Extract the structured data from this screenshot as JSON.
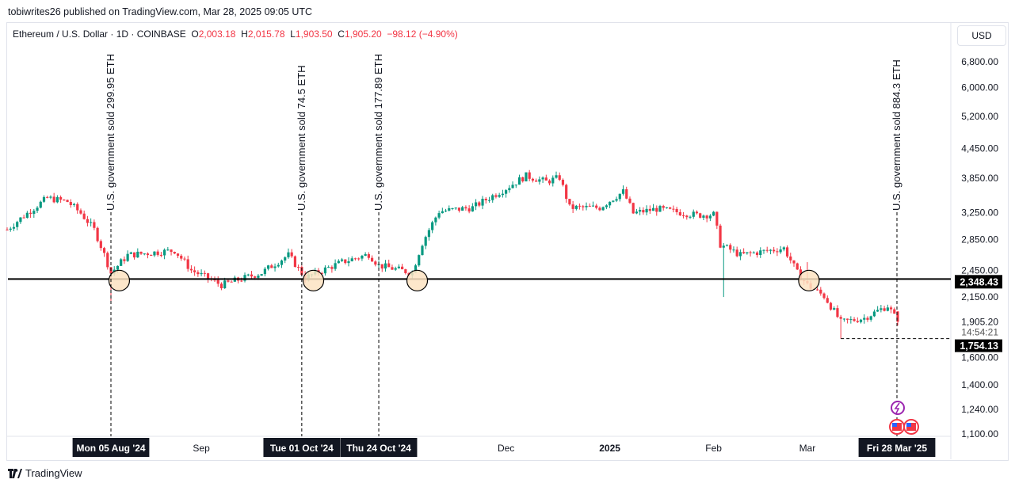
{
  "header": {
    "published": "tobiwrites26 published on TradingView.com, Mar 28, 2025 09:05 UTC"
  },
  "legend": {
    "symbol": "Ethereum / U.S. Dollar · 1D · COINBASE",
    "o_label": "O",
    "o": "2,003.18",
    "h_label": "H",
    "h": "2,015.78",
    "l_label": "L",
    "l": "1,903.50",
    "c_label": "C",
    "c": "1,905.20",
    "change": "−98.12 (−4.90%)"
  },
  "currency": "USD",
  "footer": {
    "brand": "TradingView"
  },
  "colors": {
    "up": "#089981",
    "down": "#f23645",
    "circle": "#fde3c2"
  },
  "chart_data": {
    "type": "candlestick",
    "title": "Ethereum / U.S. Dollar · 1D · COINBASE",
    "y_scale": "log",
    "ylim": [
      1100,
      6800
    ],
    "y_ticks": [
      "6,800.00",
      "6,000.00",
      "5,200.00",
      "4,450.00",
      "3,850.00",
      "3,250.00",
      "2,850.00",
      "2,450.00",
      "2,150.00",
      "1,905.20",
      "1,600.00",
      "1,400.00",
      "1,240.00",
      "1,100.00"
    ],
    "y_tick_values": [
      6800,
      6000,
      5200,
      4450,
      3850,
      3250,
      2850,
      2450,
      2150,
      1905.2,
      1600,
      1400,
      1240,
      1100
    ],
    "x_ticks": [
      {
        "label": "Sep",
        "day": 27
      },
      {
        "label": "Dec",
        "day": 118
      },
      {
        "label": "2025",
        "day": 149
      },
      {
        "label": "Feb",
        "day": 180
      },
      {
        "label": "Mar",
        "day": 208
      }
    ],
    "x_day_zero": "2024-08-05",
    "x_range_days": [
      -31,
      235
    ],
    "approx_close_path": [
      [
        -31,
        2990
      ],
      [
        -19,
        3490
      ],
      [
        -13,
        3430
      ],
      [
        -9,
        3240
      ],
      [
        -5,
        2990
      ],
      [
        0,
        2417
      ],
      [
        5,
        2640
      ],
      [
        19,
        2700
      ],
      [
        24,
        2450
      ],
      [
        33,
        2280
      ],
      [
        45,
        2420
      ],
      [
        53,
        2640
      ],
      [
        58,
        2360
      ],
      [
        69,
        2550
      ],
      [
        77,
        2650
      ],
      [
        80,
        2510
      ],
      [
        90,
        2420
      ],
      [
        93,
        2800
      ],
      [
        98,
        3270
      ],
      [
        108,
        3330
      ],
      [
        118,
        3660
      ],
      [
        124,
        3890
      ],
      [
        130,
        3780
      ],
      [
        134,
        3860
      ],
      [
        137,
        3330
      ],
      [
        146,
        3330
      ],
      [
        153,
        3600
      ],
      [
        156,
        3240
      ],
      [
        163,
        3310
      ],
      [
        175,
        3210
      ],
      [
        180,
        3220
      ],
      [
        182,
        2780
      ],
      [
        188,
        2640
      ],
      [
        201,
        2730
      ],
      [
        205,
        2420
      ],
      [
        208,
        2280
      ],
      [
        213,
        2160
      ],
      [
        218,
        1900
      ],
      [
        225,
        1940
      ],
      [
        232,
        2060
      ],
      [
        235,
        1905
      ]
    ],
    "support_level": {
      "value": 2348.43,
      "label": "2,348.43"
    },
    "low_level": {
      "value": 1754.13,
      "label": "1,754.13"
    },
    "countdown": "14:54:21",
    "last_price": "1,905.20",
    "annotations": [
      {
        "day": 0,
        "date_label": "Mon 05 Aug '24",
        "text": "U.S. government sold 299.95 ETH"
      },
      {
        "day": 57,
        "date_label": "Tue 01 Oct '24",
        "text": "U.S. government sold 74.5 ETH"
      },
      {
        "day": 80,
        "date_label": "Thu 24 Oct '24",
        "text": "U.S. government sold 177.89 ETH"
      },
      {
        "day": 235,
        "date_label": "Fri 28 Mar '25",
        "text": "U.S. government sold 884.3 ETH"
      }
    ],
    "circled_days": [
      2,
      60,
      91,
      208
    ]
  }
}
